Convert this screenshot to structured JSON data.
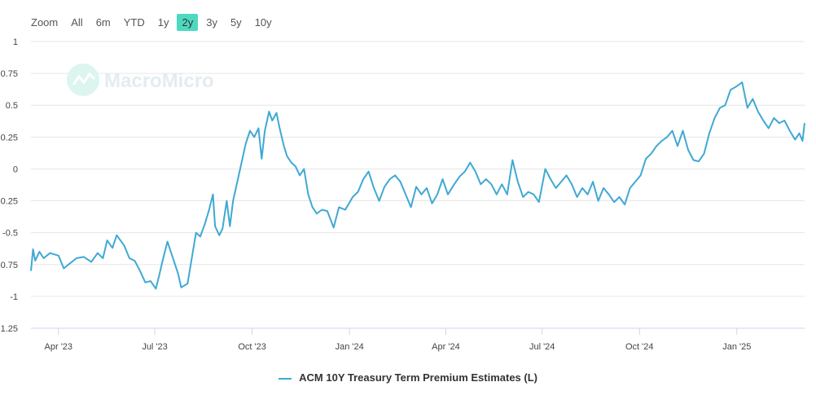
{
  "zoom": {
    "label": "Zoom",
    "buttons": [
      {
        "label": "All",
        "active": false
      },
      {
        "label": "6m",
        "active": false
      },
      {
        "label": "YTD",
        "active": false
      },
      {
        "label": "1y",
        "active": false
      },
      {
        "label": "2y",
        "active": true
      },
      {
        "label": "3y",
        "active": false
      },
      {
        "label": "5y",
        "active": false
      },
      {
        "label": "10y",
        "active": false
      }
    ]
  },
  "watermark": "MacroMicro",
  "chart_data": {
    "type": "line",
    "y_ticks": [
      "1",
      "0.75",
      "0.5",
      "0.25",
      "0",
      "-0.25",
      "-0.5",
      "-0.75",
      "-1",
      "-1.25"
    ],
    "ylim": [
      -1.25,
      1
    ],
    "x_ticks": [
      {
        "label": "Apr '23",
        "date": "2023-04-01"
      },
      {
        "label": "Jul '23",
        "date": "2023-07-01"
      },
      {
        "label": "Oct '23",
        "date": "2023-10-01"
      },
      {
        "label": "Jan '24",
        "date": "2024-01-01"
      },
      {
        "label": "Apr '24",
        "date": "2024-04-01"
      },
      {
        "label": "Jul '24",
        "date": "2024-07-01"
      },
      {
        "label": "Oct '24",
        "date": "2024-10-01"
      },
      {
        "label": "Jan '25",
        "date": "2025-01-01"
      }
    ],
    "xlim": [
      "2023-03-06",
      "2025-03-06"
    ],
    "grid": true,
    "color": "#3fa9d3",
    "series": [
      {
        "name": "ACM 10Y Treasury Term Premium Estimates (L)",
        "points": [
          [
            "2023-03-06",
            -0.8
          ],
          [
            "2023-03-08",
            -0.63
          ],
          [
            "2023-03-10",
            -0.72
          ],
          [
            "2023-03-14",
            -0.65
          ],
          [
            "2023-03-18",
            -0.7
          ],
          [
            "2023-03-24",
            -0.66
          ],
          [
            "2023-04-01",
            -0.68
          ],
          [
            "2023-04-06",
            -0.78
          ],
          [
            "2023-04-12",
            -0.74
          ],
          [
            "2023-04-18",
            -0.7
          ],
          [
            "2023-04-25",
            -0.69
          ],
          [
            "2023-05-02",
            -0.73
          ],
          [
            "2023-05-08",
            -0.66
          ],
          [
            "2023-05-13",
            -0.7
          ],
          [
            "2023-05-17",
            -0.56
          ],
          [
            "2023-05-22",
            -0.62
          ],
          [
            "2023-05-26",
            -0.52
          ],
          [
            "2023-06-02",
            -0.6
          ],
          [
            "2023-06-07",
            -0.7
          ],
          [
            "2023-06-12",
            -0.72
          ],
          [
            "2023-06-17",
            -0.8
          ],
          [
            "2023-06-22",
            -0.89
          ],
          [
            "2023-06-27",
            -0.88
          ],
          [
            "2023-07-02",
            -0.94
          ],
          [
            "2023-07-05",
            -0.84
          ],
          [
            "2023-07-09",
            -0.7
          ],
          [
            "2023-07-13",
            -0.57
          ],
          [
            "2023-07-19",
            -0.72
          ],
          [
            "2023-07-23",
            -0.82
          ],
          [
            "2023-07-26",
            -0.93
          ],
          [
            "2023-08-01",
            -0.9
          ],
          [
            "2023-08-05",
            -0.7
          ],
          [
            "2023-08-09",
            -0.5
          ],
          [
            "2023-08-13",
            -0.53
          ],
          [
            "2023-08-17",
            -0.44
          ],
          [
            "2023-08-21",
            -0.33
          ],
          [
            "2023-08-25",
            -0.2
          ],
          [
            "2023-08-27",
            -0.45
          ],
          [
            "2023-08-31",
            -0.52
          ],
          [
            "2023-09-03",
            -0.47
          ],
          [
            "2023-09-07",
            -0.25
          ],
          [
            "2023-09-10",
            -0.45
          ],
          [
            "2023-09-13",
            -0.25
          ],
          [
            "2023-09-17",
            -0.1
          ],
          [
            "2023-09-21",
            0.05
          ],
          [
            "2023-09-25",
            0.2
          ],
          [
            "2023-09-29",
            0.3
          ],
          [
            "2023-10-03",
            0.25
          ],
          [
            "2023-10-07",
            0.32
          ],
          [
            "2023-10-10",
            0.08
          ],
          [
            "2023-10-13",
            0.3
          ],
          [
            "2023-10-17",
            0.45
          ],
          [
            "2023-10-20",
            0.38
          ],
          [
            "2023-10-24",
            0.44
          ],
          [
            "2023-10-27",
            0.32
          ],
          [
            "2023-10-31",
            0.18
          ],
          [
            "2023-11-03",
            0.1
          ],
          [
            "2023-11-07",
            0.05
          ],
          [
            "2023-11-11",
            0.02
          ],
          [
            "2023-11-15",
            -0.05
          ],
          [
            "2023-11-19",
            0.0
          ],
          [
            "2023-11-23",
            -0.2
          ],
          [
            "2023-11-27",
            -0.3
          ],
          [
            "2023-12-01",
            -0.35
          ],
          [
            "2023-12-06",
            -0.32
          ],
          [
            "2023-12-11",
            -0.33
          ],
          [
            "2023-12-17",
            -0.46
          ],
          [
            "2023-12-22",
            -0.3
          ],
          [
            "2023-12-28",
            -0.32
          ],
          [
            "2024-01-04",
            -0.22
          ],
          [
            "2024-01-09",
            -0.18
          ],
          [
            "2024-01-14",
            -0.08
          ],
          [
            "2024-01-19",
            -0.02
          ],
          [
            "2024-01-24",
            -0.15
          ],
          [
            "2024-01-29",
            -0.25
          ],
          [
            "2024-02-03",
            -0.14
          ],
          [
            "2024-02-08",
            -0.08
          ],
          [
            "2024-02-13",
            -0.05
          ],
          [
            "2024-02-18",
            -0.1
          ],
          [
            "2024-02-23",
            -0.2
          ],
          [
            "2024-02-28",
            -0.3
          ],
          [
            "2024-03-04",
            -0.14
          ],
          [
            "2024-03-09",
            -0.2
          ],
          [
            "2024-03-14",
            -0.15
          ],
          [
            "2024-03-19",
            -0.27
          ],
          [
            "2024-03-24",
            -0.2
          ],
          [
            "2024-03-29",
            -0.08
          ],
          [
            "2024-04-03",
            -0.2
          ],
          [
            "2024-04-09",
            -0.12
          ],
          [
            "2024-04-14",
            -0.06
          ],
          [
            "2024-04-19",
            -0.02
          ],
          [
            "2024-04-24",
            0.05
          ],
          [
            "2024-04-29",
            -0.02
          ],
          [
            "2024-05-04",
            -0.12
          ],
          [
            "2024-05-09",
            -0.08
          ],
          [
            "2024-05-14",
            -0.12
          ],
          [
            "2024-05-19",
            -0.2
          ],
          [
            "2024-05-24",
            -0.12
          ],
          [
            "2024-05-29",
            -0.2
          ],
          [
            "2024-06-03",
            0.07
          ],
          [
            "2024-06-08",
            -0.1
          ],
          [
            "2024-06-13",
            -0.22
          ],
          [
            "2024-06-18",
            -0.18
          ],
          [
            "2024-06-23",
            -0.2
          ],
          [
            "2024-06-28",
            -0.26
          ],
          [
            "2024-07-04",
            0.0
          ],
          [
            "2024-07-09",
            -0.08
          ],
          [
            "2024-07-14",
            -0.15
          ],
          [
            "2024-07-19",
            -0.1
          ],
          [
            "2024-07-24",
            -0.05
          ],
          [
            "2024-07-29",
            -0.12
          ],
          [
            "2024-08-03",
            -0.22
          ],
          [
            "2024-08-08",
            -0.15
          ],
          [
            "2024-08-13",
            -0.2
          ],
          [
            "2024-08-18",
            -0.1
          ],
          [
            "2024-08-23",
            -0.25
          ],
          [
            "2024-08-28",
            -0.15
          ],
          [
            "2024-09-02",
            -0.2
          ],
          [
            "2024-09-07",
            -0.26
          ],
          [
            "2024-09-12",
            -0.22
          ],
          [
            "2024-09-17",
            -0.28
          ],
          [
            "2024-09-22",
            -0.15
          ],
          [
            "2024-09-27",
            -0.1
          ],
          [
            "2024-10-02",
            -0.05
          ],
          [
            "2024-10-07",
            0.08
          ],
          [
            "2024-10-12",
            0.12
          ],
          [
            "2024-10-17",
            0.18
          ],
          [
            "2024-10-22",
            0.22
          ],
          [
            "2024-10-27",
            0.25
          ],
          [
            "2024-11-01",
            0.3
          ],
          [
            "2024-11-06",
            0.18
          ],
          [
            "2024-11-11",
            0.3
          ],
          [
            "2024-11-16",
            0.15
          ],
          [
            "2024-11-21",
            0.07
          ],
          [
            "2024-11-26",
            0.06
          ],
          [
            "2024-12-01",
            0.12
          ],
          [
            "2024-12-06",
            0.28
          ],
          [
            "2024-12-11",
            0.4
          ],
          [
            "2024-12-16",
            0.48
          ],
          [
            "2024-12-21",
            0.5
          ],
          [
            "2024-12-26",
            0.62
          ],
          [
            "2025-01-01",
            0.65
          ],
          [
            "2025-01-06",
            0.68
          ],
          [
            "2025-01-11",
            0.48
          ],
          [
            "2025-01-16",
            0.55
          ],
          [
            "2025-01-21",
            0.45
          ],
          [
            "2025-01-26",
            0.38
          ],
          [
            "2025-01-31",
            0.32
          ],
          [
            "2025-02-05",
            0.4
          ],
          [
            "2025-02-10",
            0.36
          ],
          [
            "2025-02-15",
            0.38
          ],
          [
            "2025-02-20",
            0.3
          ],
          [
            "2025-02-25",
            0.23
          ],
          [
            "2025-03-01",
            0.28
          ],
          [
            "2025-03-04",
            0.22
          ],
          [
            "2025-03-06",
            0.36
          ]
        ]
      }
    ]
  }
}
